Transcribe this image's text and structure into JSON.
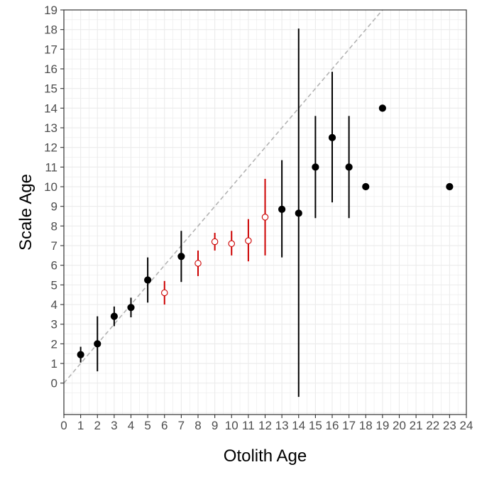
{
  "chart_data": {
    "type": "scatter",
    "title": "",
    "xlabel": "Otolith Age",
    "ylabel": "Scale Age",
    "xlim": [
      0,
      24
    ],
    "ylim": [
      -1.6,
      19
    ],
    "x_ticks": [
      "0",
      "1",
      "2",
      "3",
      "4",
      "5",
      "6",
      "7",
      "8",
      "9",
      "10",
      "11",
      "12",
      "13",
      "14",
      "15",
      "16",
      "17",
      "18",
      "19",
      "20",
      "21",
      "22",
      "23",
      "24"
    ],
    "y_ticks": [
      "0",
      "1",
      "2",
      "3",
      "4",
      "5",
      "6",
      "7",
      "8",
      "9",
      "10",
      "11",
      "12",
      "13",
      "14",
      "15",
      "16",
      "17",
      "18",
      "19"
    ],
    "grid": true,
    "reference_line": {
      "style": "dashed",
      "color": "#b3b3b3",
      "slope": 1,
      "intercept": 0
    },
    "colors": {
      "significant": "#000000",
      "not_significant": "#cc0000",
      "grid": "#ebebeb",
      "panel_border": "#333333"
    },
    "points": [
      {
        "x": 1,
        "y": 1.45,
        "lo": 1.05,
        "hi": 1.85,
        "filled": true
      },
      {
        "x": 2,
        "y": 2.0,
        "lo": 0.6,
        "hi": 3.4,
        "filled": true
      },
      {
        "x": 3,
        "y": 3.4,
        "lo": 2.9,
        "hi": 3.9,
        "filled": true
      },
      {
        "x": 4,
        "y": 3.85,
        "lo": 3.35,
        "hi": 4.35,
        "filled": true
      },
      {
        "x": 5,
        "y": 5.25,
        "lo": 4.1,
        "hi": 6.4,
        "filled": true
      },
      {
        "x": 6,
        "y": 4.6,
        "lo": 4.0,
        "hi": 5.2,
        "filled": false
      },
      {
        "x": 7,
        "y": 6.45,
        "lo": 5.15,
        "hi": 7.75,
        "filled": true
      },
      {
        "x": 8,
        "y": 6.1,
        "lo": 5.45,
        "hi": 6.75,
        "filled": false
      },
      {
        "x": 9,
        "y": 7.2,
        "lo": 6.75,
        "hi": 7.65,
        "filled": false
      },
      {
        "x": 10,
        "y": 7.1,
        "lo": 6.5,
        "hi": 7.75,
        "filled": false
      },
      {
        "x": 11,
        "y": 7.25,
        "lo": 6.2,
        "hi": 8.35,
        "filled": false
      },
      {
        "x": 12,
        "y": 8.45,
        "lo": 6.5,
        "hi": 10.4,
        "filled": false
      },
      {
        "x": 13,
        "y": 8.85,
        "lo": 6.4,
        "hi": 11.35,
        "filled": true
      },
      {
        "x": 14,
        "y": 8.65,
        "lo": -0.7,
        "hi": 18.05,
        "filled": true
      },
      {
        "x": 15,
        "y": 11.0,
        "lo": 8.4,
        "hi": 13.6,
        "filled": true
      },
      {
        "x": 16,
        "y": 12.5,
        "lo": 9.2,
        "hi": 15.85,
        "filled": true
      },
      {
        "x": 17,
        "y": 11.0,
        "lo": 8.4,
        "hi": 13.6,
        "filled": true
      },
      {
        "x": 18,
        "y": 10.0,
        "filled": true
      },
      {
        "x": 19,
        "y": 14.0,
        "filled": true
      },
      {
        "x": 23,
        "y": 10.0,
        "filled": true
      }
    ]
  }
}
